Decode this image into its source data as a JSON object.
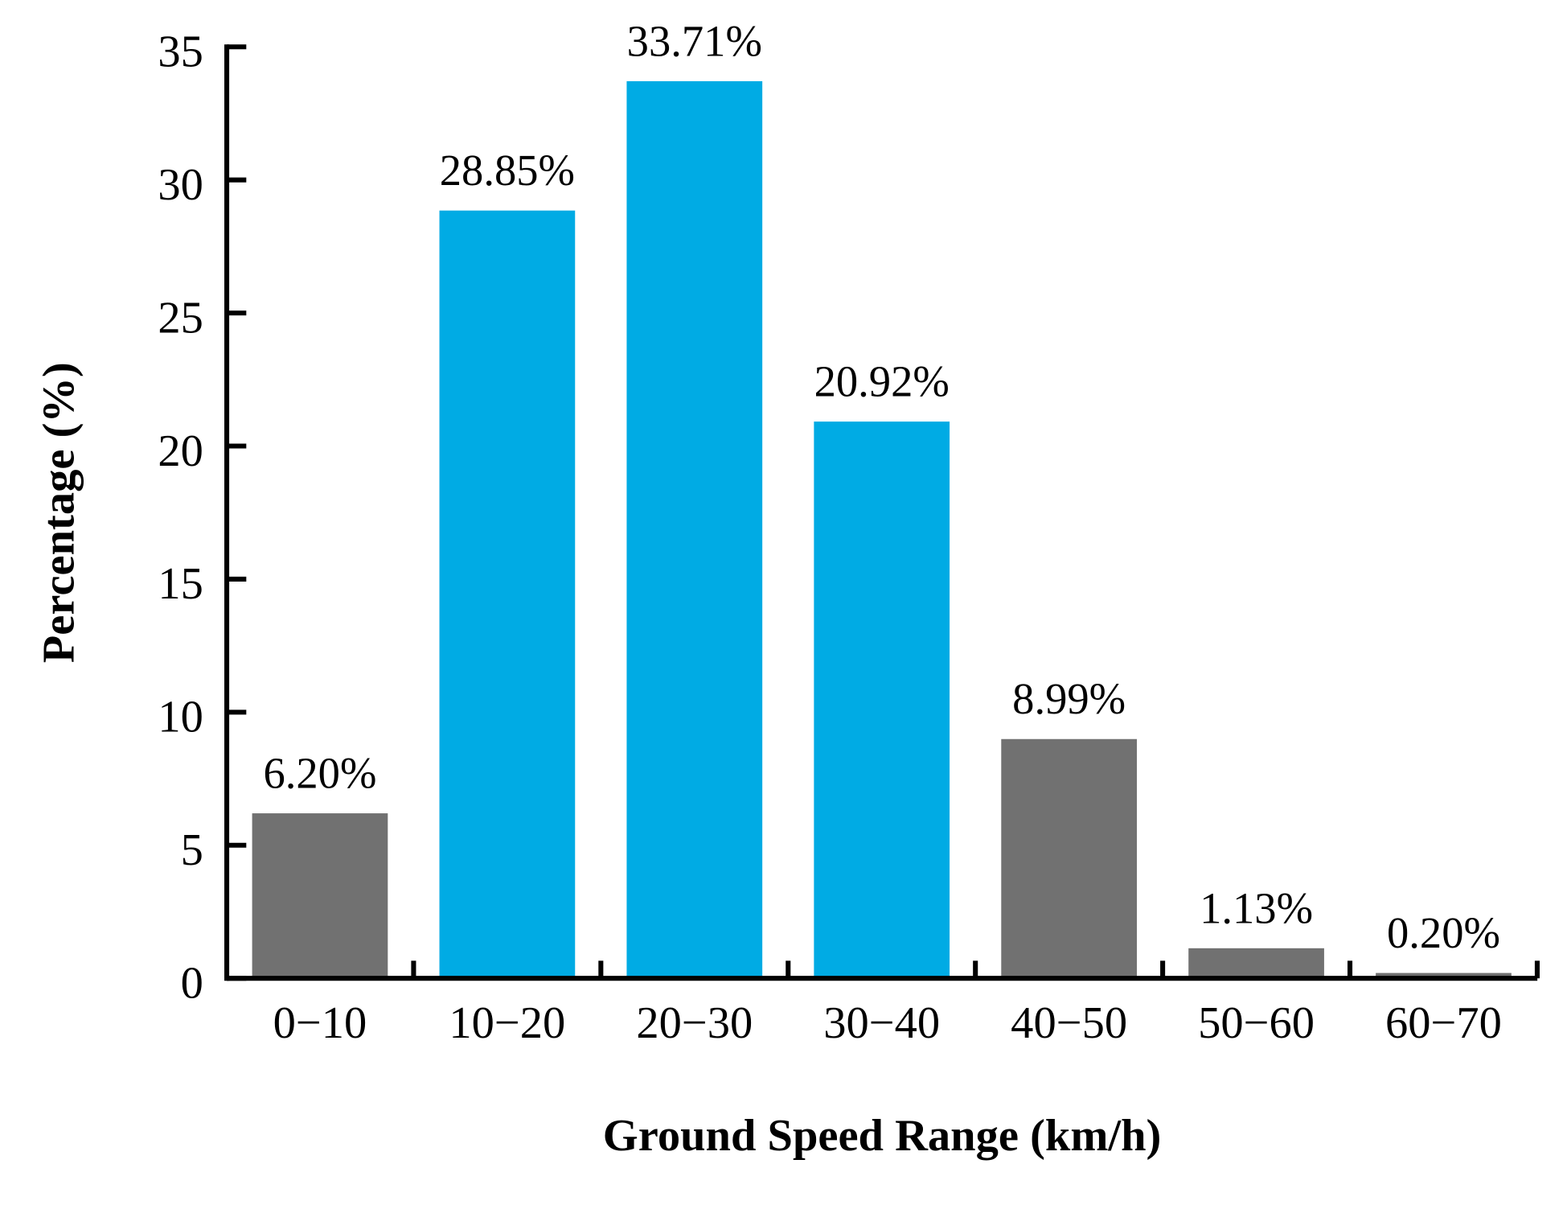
{
  "chart_data": {
    "type": "bar",
    "title": "",
    "xlabel": "Ground Speed Range (km/h)",
    "ylabel": "Percentage (%)",
    "ylim": [
      0,
      35
    ],
    "yticks": [
      0,
      5,
      10,
      15,
      20,
      25,
      30,
      35
    ],
    "grid": false,
    "legend": "none",
    "categories": [
      "0−10",
      "10−20",
      "20−30",
      "30−40",
      "40−50",
      "50−60",
      "60−70"
    ],
    "values": [
      6.2,
      28.85,
      33.71,
      20.92,
      8.99,
      1.13,
      0.2
    ],
    "data_labels": [
      "6.20%",
      "28.85%",
      "33.71%",
      "20.92%",
      "8.99%",
      "1.13%",
      "0.20%"
    ],
    "highlighted": [
      false,
      true,
      true,
      true,
      false,
      false,
      false
    ],
    "colors": {
      "highlight": "#00ABE4",
      "default": "#717171",
      "axis": "#000000"
    }
  }
}
